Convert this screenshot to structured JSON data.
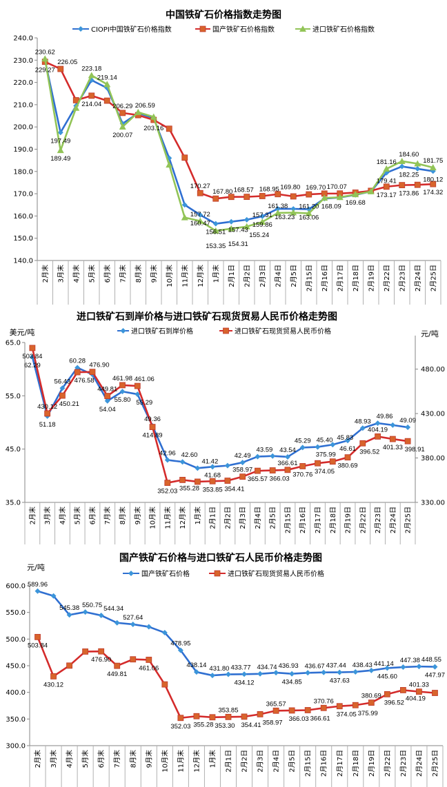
{
  "chart_data": [
    {
      "type": "line",
      "title": "中国铁矿石价格指数走势图",
      "ylabel": "",
      "ylim": [
        140,
        240
      ],
      "ytick_step": 10,
      "ytick_format": 1,
      "grid": false,
      "legend": "top",
      "categories": [
        "2月末",
        "3月末",
        "4月末",
        "5月末",
        "6月末",
        "7月末",
        "8月末",
        "9月末",
        "10月末",
        "11月末",
        "12月末",
        "1月末",
        "2月1日",
        "2月2日",
        "2月3日",
        "2月4日",
        "2月5日",
        "2月15日",
        "2月16日",
        "2月17日",
        "2月18日",
        "2月19日",
        "2月22日",
        "2月23日",
        "2月24日",
        "2月25日"
      ],
      "series": [
        {
          "name": "CIOPI中国铁矿石价格指数",
          "color": "#2F6FD1",
          "marker": "diamond",
          "marker_color": "#3C95DA",
          "axis": "left",
          "values": [
            230.0,
            197.49,
            209.5,
            221.0,
            217.5,
            201.5,
            206.2,
            204.0,
            186.0,
            165.0,
            160.47,
            156.51,
            157.43,
            158.3,
            159.86,
            163.23,
            163.2,
            163.06,
            167.8,
            168.3,
            169.5,
            171.0,
            179.41,
            182.25,
            181.2,
            180.12
          ],
          "labels": [
            null,
            "197.49",
            null,
            null,
            null,
            null,
            null,
            null,
            null,
            null,
            "160.47",
            "156.51",
            "157.43",
            null,
            "159.86",
            "163.23",
            null,
            "163.06",
            null,
            null,
            null,
            null,
            "179.41",
            "182.25",
            null,
            "180.12"
          ]
        },
        {
          "name": "国产铁矿石价格指数",
          "color": "#D42B2B",
          "marker": "square",
          "marker_color": "#D8642C",
          "axis": "left",
          "values": [
            229.27,
            226.05,
            212.0,
            214.04,
            211.8,
            206.29,
            205.3,
            203.16,
            199.2,
            186.2,
            170.27,
            167.8,
            168.57,
            168.6,
            168.95,
            169.8,
            168.8,
            169.7,
            170.07,
            170.1,
            170.5,
            171.3,
            173.17,
            173.86,
            174.0,
            174.32
          ],
          "labels": [
            "229.27",
            "226.05",
            null,
            "214.04",
            null,
            "206.29",
            null,
            "203.16",
            null,
            null,
            "170.27",
            "167.80",
            "168.57",
            null,
            "168.95",
            "169.80",
            null,
            "169.70",
            "170.07",
            null,
            null,
            null,
            "173.17",
            "173.86",
            null,
            "174.32"
          ]
        },
        {
          "name": "进口铁矿石价格指数",
          "color": "#92C457",
          "marker": "triangle",
          "marker_color": "#92C457",
          "axis": "left",
          "values": [
            230.62,
            189.49,
            208.5,
            223.18,
            219.14,
            200.07,
            206.59,
            204.5,
            183.0,
            159.3,
            157.72,
            153.35,
            154.31,
            155.24,
            157.31,
            161.38,
            161.5,
            161.2,
            168.09,
            168.4,
            169.68,
            171.0,
            181.16,
            184.6,
            183.5,
            181.75
          ],
          "labels": [
            "230.62",
            "189.49",
            null,
            "223.18",
            "219.14",
            "200.07",
            "206.59",
            null,
            null,
            null,
            "157.72",
            "153.35",
            "154.31",
            "155.24",
            "157.31",
            "161.38",
            null,
            "161.20",
            "168.09",
            null,
            "169.68",
            null,
            "181.16",
            "184.60",
            null,
            "181.75"
          ]
        }
      ]
    },
    {
      "type": "line",
      "title": "进口铁矿石到岸价格与进口铁矿石现货贸易人民币价格走势图",
      "ylabel": "美元/吨",
      "ylabel_right": "元/吨",
      "ylim": [
        35,
        65
      ],
      "ytick_step": 10,
      "ytick_format": 1,
      "ylim_right": [
        330,
        510
      ],
      "yticks_right": [
        330,
        380,
        430,
        480
      ],
      "ytick_right_format": 2,
      "grid": false,
      "legend": "top",
      "categories": [
        "2月末",
        "3月末",
        "4月末",
        "5月末",
        "6月末",
        "7月末",
        "8月末",
        "9月末",
        "10月末",
        "11月末",
        "12月末",
        "1月末",
        "2月1日",
        "2月2日",
        "2月3日",
        "2月4日",
        "2月5日",
        "2月15日",
        "2月16日",
        "2月17日",
        "2月18日",
        "2月19日",
        "2月22日",
        "2月23日",
        "2月24日",
        "2月25日"
      ],
      "series": [
        {
          "name": "进口铁矿石到岸价格",
          "color": "#2F6FD1",
          "marker": "diamond",
          "marker_color": "#3C95DA",
          "axis": "left",
          "values": [
            62.29,
            51.18,
            56.43,
            60.28,
            59.0,
            54.04,
            55.8,
            55.29,
            49.36,
            42.96,
            42.6,
            41.42,
            41.68,
            41.9,
            42.49,
            43.59,
            43.7,
            43.54,
            45.29,
            45.4,
            45.83,
            46.61,
            48.93,
            49.86,
            49.5,
            49.09
          ],
          "labels": [
            "62.29",
            "51.18",
            "56.43",
            "60.28",
            null,
            "54.04",
            "55.80",
            "55.29",
            "49.36",
            "42.96",
            "42.60",
            "41.42",
            "41.68",
            null,
            "42.49",
            "43.59",
            null,
            "43.54",
            "45.29",
            "45.40",
            "45.83",
            "46.61",
            "48.93",
            "49.86",
            null,
            "49.09"
          ]
        },
        {
          "name": "进口铁矿石现货贸易人民币价格",
          "color": "#D42B2B",
          "marker": "square",
          "marker_color": "#D8642C",
          "axis": "right",
          "values": [
            503.84,
            430.12,
            450.21,
            476.58,
            476.9,
            449.81,
            461.98,
            461.06,
            414.89,
            352.03,
            355.28,
            353.3,
            353.85,
            354.41,
            358.97,
            365.57,
            366.03,
            366.61,
            370.76,
            374.05,
            375.99,
            380.69,
            396.52,
            404.19,
            401.33,
            398.91
          ],
          "labels": [
            "503.84",
            "430.12",
            "450.21",
            "476.58",
            "476.90",
            "449.81",
            "461.98",
            "461.06",
            "414.89",
            "352.03",
            "355.28",
            null,
            "353.85",
            "354.41",
            "358.97",
            "365.57",
            "366.03",
            "366.61",
            "370.76",
            "374.05",
            "375.99",
            "380.69",
            "396.52",
            "404.19",
            "401.33",
            "398.91"
          ]
        }
      ]
    },
    {
      "type": "line",
      "title": "国产铁矿石价格与进口铁矿石人民币价格走势图",
      "ylabel": "元/吨",
      "ylim": [
        300,
        600
      ],
      "ytick_step": 50,
      "ytick_format": 1,
      "grid": false,
      "legend": "top",
      "categories": [
        "2月末",
        "3月末",
        "4月末",
        "5月末",
        "6月末",
        "7月末",
        "8月末",
        "9月末",
        "10月末",
        "11月末",
        "12月末",
        "1月末",
        "2月1日",
        "2月2日",
        "2月3日",
        "2月4日",
        "2月5日",
        "2月15日",
        "2月16日",
        "2月17日",
        "2月18日",
        "2月19日",
        "2月22日",
        "2月23日",
        "2月24日",
        "2月25日"
      ],
      "series": [
        {
          "name": "国产铁矿石价格",
          "color": "#2F6FD1",
          "marker": "diamond",
          "marker_color": "#3C95DA",
          "axis": "left",
          "values": [
            589.96,
            581.0,
            545.38,
            550.75,
            544.34,
            530.5,
            527.64,
            523.0,
            512.0,
            478.95,
            438.14,
            431.8,
            433.77,
            434.12,
            434.74,
            436.93,
            434.85,
            436.67,
            437.44,
            437.63,
            438.43,
            441.14,
            445.6,
            447.38,
            448.55,
            447.97
          ],
          "labels": [
            "589.96",
            null,
            "545.38",
            "550.75",
            "544.34",
            null,
            "527.64",
            null,
            null,
            "478.95",
            "438.14",
            "431.80",
            "433.77",
            "434.12",
            "434.74",
            "436.93",
            "434.85",
            "436.67",
            "437.44",
            "437.63",
            "438.43",
            "441.14",
            "445.60",
            "447.38",
            "448.55",
            "447.97"
          ]
        },
        {
          "name": "进口铁矿石现货贸易人民币价格",
          "color": "#D42B2B",
          "marker": "square",
          "marker_color": "#D8642C",
          "axis": "left",
          "values": [
            503.84,
            430.12,
            450.21,
            476.58,
            476.9,
            449.81,
            461.98,
            461.06,
            414.89,
            352.03,
            355.28,
            353.3,
            353.85,
            354.41,
            358.97,
            365.57,
            366.03,
            366.61,
            370.76,
            374.05,
            375.99,
            380.69,
            396.52,
            404.19,
            401.33,
            398.91
          ],
          "labels": [
            "503.84",
            "430.12",
            null,
            null,
            "476.90",
            "449.81",
            null,
            "461.06",
            null,
            "352.03",
            "355.28",
            "353.30",
            "353.85",
            "354.41",
            "358.97",
            "365.57",
            "366.03",
            "366.61",
            "370.76",
            "374.05",
            "375.99",
            "380.69",
            "396.52",
            "404.19",
            "401.33",
            null
          ]
        }
      ]
    }
  ]
}
